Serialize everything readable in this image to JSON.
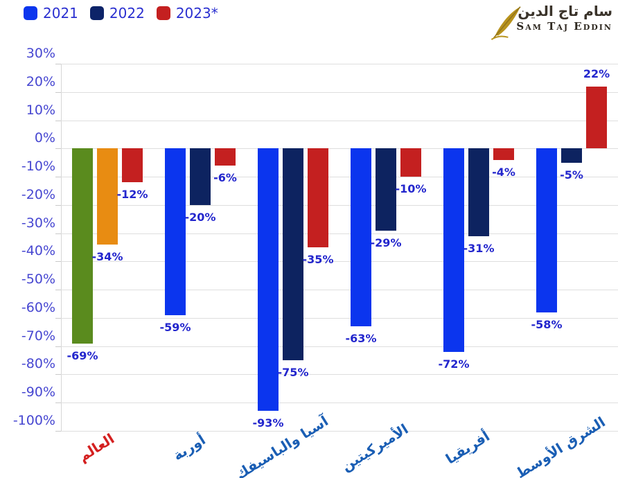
{
  "header": {
    "legend": [
      {
        "label": "2021",
        "color": "#0b35ee"
      },
      {
        "label": "2022",
        "color": "#0d2368"
      },
      {
        "label": "2023*",
        "color": "#c42020"
      }
    ],
    "logo": {
      "arabic": "سام تاج الدين",
      "latin": "Sam Taj Eddin",
      "accent_color": "#b8931d"
    }
  },
  "chart_data": {
    "type": "bar",
    "title": "",
    "xlabel": "",
    "ylabel": "",
    "ylim": [
      -100,
      30
    ],
    "ytick_step": 10,
    "ytick_suffix": "%",
    "grid": true,
    "legend_position": "top-left",
    "categories": [
      "العالم",
      "أوربة",
      "آسيا والباسيفك",
      "الأميركيتين",
      "أفريقيا",
      "الشرق الأوسط"
    ],
    "category_colors": [
      "#d42020",
      "#1a5eb4",
      "#1a5eb4",
      "#1a5eb4",
      "#1a5eb4",
      "#1a5eb4"
    ],
    "series": [
      {
        "name": "2021",
        "values": [
          -69,
          -59,
          -93,
          -63,
          -72,
          -58
        ],
        "labels": [
          "-69%",
          "-59%",
          "-93%",
          "-63%",
          "-72%",
          "-58%"
        ],
        "bar_colors": [
          "#5a8b1e",
          "#0b35ee",
          "#0b35ee",
          "#0b35ee",
          "#0b35ee",
          "#0b35ee"
        ]
      },
      {
        "name": "2022",
        "values": [
          -34,
          -20,
          -75,
          -29,
          -31,
          -5
        ],
        "labels": [
          "-34%",
          "-20%",
          "-75%",
          "-29%",
          "-31%",
          "-5%"
        ],
        "bar_colors": [
          "#e88c12",
          "#0d2360",
          "#0d2360",
          "#0d2360",
          "#0d2360",
          "#0d2360"
        ]
      },
      {
        "name": "2023*",
        "values": [
          -12,
          -6,
          -35,
          -10,
          -4,
          22
        ],
        "labels": [
          "-12%",
          "-6%",
          "-35%",
          "-10%",
          "-4%",
          "22%"
        ],
        "bar_colors": [
          "#c42020",
          "#c42020",
          "#c42020",
          "#c42020",
          "#c42020",
          "#c42020"
        ]
      }
    ],
    "value_label_color": "#2326cd",
    "axis_label_color": "#4747d1"
  }
}
